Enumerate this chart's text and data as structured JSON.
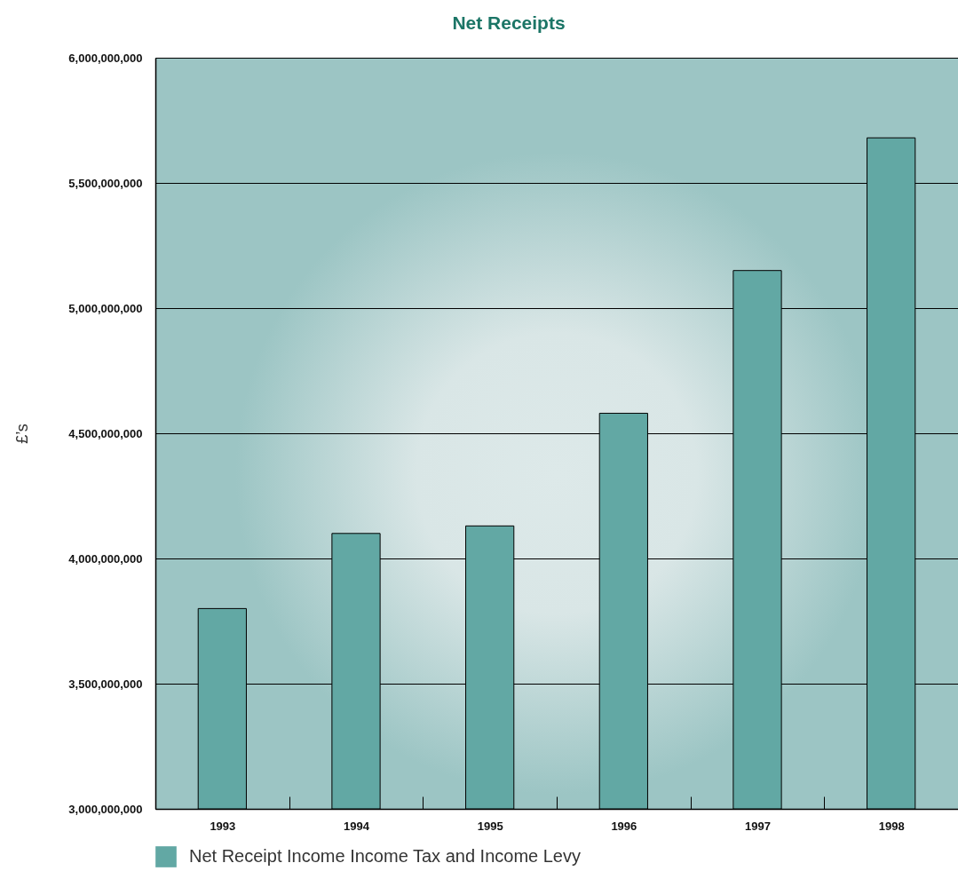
{
  "chart_data": {
    "type": "bar",
    "title": "Net Receipts",
    "ylabel": "£’s",
    "categories": [
      "1993",
      "1994",
      "1995",
      "1996",
      "1997",
      "1998"
    ],
    "series": [
      {
        "name": "Net Receipt Income Income Tax and Income Levy",
        "color": "#62a8a4",
        "values": [
          3800000000,
          4100000000,
          4130000000,
          4580000000,
          5150000000,
          5680000000
        ]
      }
    ],
    "ylim": [
      3000000000,
      6000000000
    ],
    "yticks": [
      {
        "value": 3000000000,
        "label": "3,000,000,000"
      },
      {
        "value": 3500000000,
        "label": "3,500,000,000"
      },
      {
        "value": 4000000000,
        "label": "4,000,000,000"
      },
      {
        "value": 4500000000,
        "label": "4,500,000,000"
      },
      {
        "value": 5000000000,
        "label": "5,000,000,000"
      },
      {
        "value": 5500000000,
        "label": "5,500,000,000"
      },
      {
        "value": 6000000000,
        "label": "6,000,000,000"
      }
    ],
    "grid": "y",
    "legend": "bottom left"
  }
}
